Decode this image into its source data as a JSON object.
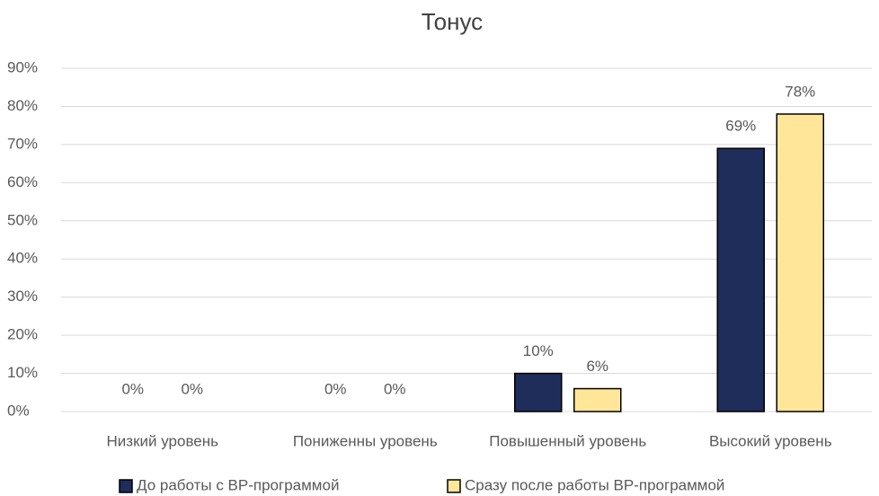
{
  "chart_data": {
    "type": "bar",
    "title": "Тонус",
    "categories": [
      "Низкий уровень",
      "Пониженны уровень",
      "Повышенный уровень",
      "Высокий уровень"
    ],
    "series": [
      {
        "name": "До работы с ВР-программой",
        "color": "#1f2d5a",
        "values": [
          0,
          0,
          10,
          69
        ],
        "value_labels": [
          "0%",
          "0%",
          "10%",
          "69%"
        ]
      },
      {
        "name": "Сразу после работы ВР-программой",
        "color": "#ffe699",
        "values": [
          0,
          0,
          6,
          78
        ],
        "value_labels": [
          "0%",
          "0%",
          "6%",
          "78%"
        ]
      }
    ],
    "ylim": [
      0,
      90
    ],
    "yticks": [
      {
        "value": 0,
        "label": "0%"
      },
      {
        "value": 10,
        "label": "10%"
      },
      {
        "value": 20,
        "label": "20%"
      },
      {
        "value": 30,
        "label": "30%"
      },
      {
        "value": 40,
        "label": "40%"
      },
      {
        "value": 50,
        "label": "50%"
      },
      {
        "value": 60,
        "label": "60%"
      },
      {
        "value": 70,
        "label": "70%"
      },
      {
        "value": 80,
        "label": "80%"
      },
      {
        "value": 90,
        "label": "90%"
      }
    ],
    "grid": true,
    "legend": "bottom"
  }
}
